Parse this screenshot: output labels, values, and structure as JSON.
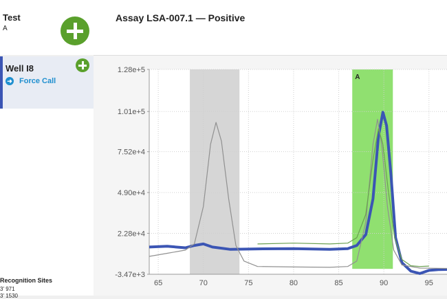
{
  "test": {
    "title": "Test",
    "subtitle": "A"
  },
  "well": {
    "title": "Well I8",
    "force_call_label": "Force Call"
  },
  "sidebar_lower": {
    "section_title": "Recognition Sites",
    "rows": [
      "3' 971",
      "3' 1530"
    ]
  },
  "header": {
    "assay_title": "Assay LSA-007.1 — Positive"
  },
  "colors": {
    "accent_green": "#5aa02c",
    "link_blue": "#1f8fcf",
    "trace_blue": "#3b55b4",
    "region_green": "#90e070",
    "region_grey": "#d6d6d6"
  },
  "chart_data": {
    "type": "line",
    "title": "",
    "xlabel": "",
    "ylabel": "",
    "xlim": [
      64,
      97
    ],
    "ylim": [
      -3470,
      128000
    ],
    "x_ticks": [
      "65",
      "70",
      "75",
      "80",
      "85",
      "90",
      "95"
    ],
    "y_ticks": [
      "1.28e+5",
      "1.01e+5",
      "7.52e+4",
      "4.90e+4",
      "2.28e+4",
      "-3.47e+3"
    ],
    "shaded_regions": [
      {
        "label": "",
        "x_start": 68.5,
        "x_end": 74,
        "color": "#d6d6d6"
      },
      {
        "label": "A",
        "x_start": 86.5,
        "x_end": 91,
        "color": "#90e070"
      }
    ],
    "series": [
      {
        "color": "#3b55b4",
        "points": [
          [
            64,
            14000
          ],
          [
            66,
            14500
          ],
          [
            68,
            13500
          ],
          [
            69,
            15000
          ],
          [
            70,
            16000
          ],
          [
            71,
            14000
          ],
          [
            73,
            12500
          ],
          [
            76,
            12800
          ],
          [
            80,
            13000
          ],
          [
            84,
            12500
          ],
          [
            86,
            13000
          ],
          [
            87,
            15000
          ],
          [
            88,
            22000
          ],
          [
            88.8,
            45000
          ],
          [
            89.4,
            85000
          ],
          [
            89.9,
            100500
          ],
          [
            90.3,
            92000
          ],
          [
            90.8,
            60000
          ],
          [
            91.3,
            20000
          ],
          [
            92,
            4000
          ],
          [
            93,
            -1500
          ],
          [
            94,
            -3000
          ],
          [
            95,
            -1000
          ],
          [
            96,
            -500
          ],
          [
            97,
            -400
          ]
        ]
      },
      {
        "color": "#909090",
        "points": [
          [
            64,
            8000
          ],
          [
            66,
            10000
          ],
          [
            68,
            12000
          ],
          [
            69,
            16000
          ],
          [
            70,
            40000
          ],
          [
            70.8,
            80000
          ],
          [
            71.4,
            94000
          ],
          [
            72,
            82000
          ],
          [
            72.8,
            45000
          ],
          [
            73.6,
            15000
          ],
          [
            74.5,
            5000
          ],
          [
            76,
            1500
          ],
          [
            80,
            1200
          ],
          [
            84,
            1000
          ],
          [
            86,
            1500
          ],
          [
            87,
            5000
          ],
          [
            88,
            30000
          ],
          [
            88.8,
            80000
          ],
          [
            89.3,
            96000
          ],
          [
            89.8,
            78000
          ],
          [
            90.4,
            40000
          ],
          [
            91.1,
            12000
          ],
          [
            92,
            2500
          ],
          [
            94,
            500
          ],
          [
            97,
            300
          ]
        ]
      },
      {
        "color": "#6aa050",
        "points": [
          [
            76,
            16000
          ],
          [
            80,
            16500
          ],
          [
            84,
            16000
          ],
          [
            86,
            16500
          ],
          [
            87,
            20000
          ],
          [
            88,
            35000
          ],
          [
            88.8,
            70000
          ],
          [
            89.4,
            90000
          ],
          [
            89.9,
            80000
          ],
          [
            90.5,
            50000
          ],
          [
            91.2,
            20000
          ],
          [
            92,
            6000
          ],
          [
            93,
            2000
          ],
          [
            94,
            1500
          ],
          [
            95,
            1800
          ]
        ]
      }
    ]
  }
}
